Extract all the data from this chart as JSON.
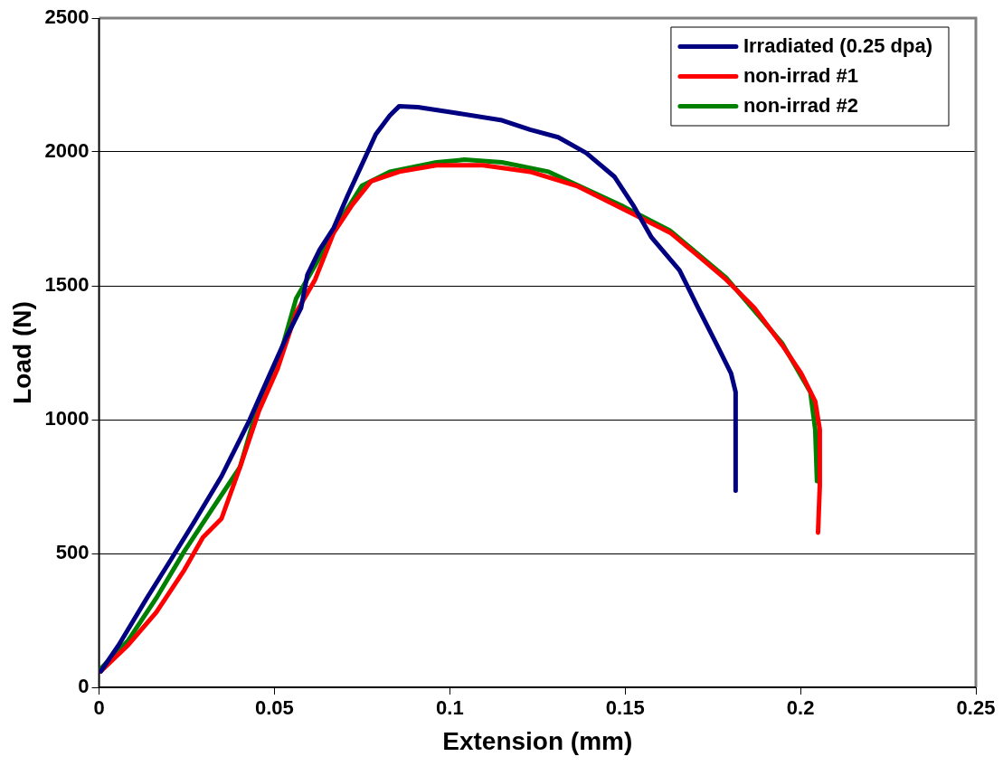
{
  "chart_data": {
    "type": "line",
    "xlabel": "Extension (mm)",
    "ylabel": "Load (N)",
    "xlim": [
      0,
      0.25
    ],
    "xticks": [
      0,
      0.05,
      0.1,
      0.15,
      0.2,
      0.25
    ],
    "ylim": [
      0,
      2500
    ],
    "yticks": [
      0,
      500,
      1000,
      1500,
      2000,
      2500
    ],
    "grid": "y",
    "legend": "top right",
    "marker": "none",
    "line_style": "solid",
    "series": [
      {
        "name": "Irradiated (0.25 dpa)",
        "color": "#000080",
        "x": [
          0.0005,
          0.0056,
          0.0136,
          0.0203,
          0.0269,
          0.0349,
          0.0429,
          0.0482,
          0.0536,
          0.0576,
          0.0594,
          0.0629,
          0.0669,
          0.0709,
          0.0746,
          0.0789,
          0.0829,
          0.0856,
          0.0909,
          0.1015,
          0.1149,
          0.1229,
          0.1309,
          0.1389,
          0.1469,
          0.1522,
          0.1575,
          0.1655,
          0.1708,
          0.1762,
          0.1802,
          0.1815,
          0.1815
        ],
        "values": [
          60,
          158,
          333,
          473,
          613,
          788,
          998,
          1155,
          1313,
          1418,
          1541,
          1635,
          1716,
          1838,
          1943,
          2066,
          2136,
          2171,
          2167,
          2146,
          2118,
          2083,
          2055,
          1996,
          1908,
          1803,
          1681,
          1558,
          1418,
          1278,
          1173,
          1103,
          735
        ]
      },
      {
        "name": "non-irrad #1",
        "color": "#ff0000",
        "x": [
          0.0005,
          0.0083,
          0.0163,
          0.0243,
          0.0296,
          0.0349,
          0.0402,
          0.0456,
          0.0509,
          0.0562,
          0.0616,
          0.0669,
          0.0722,
          0.0776,
          0.0856,
          0.0962,
          0.1095,
          0.1229,
          0.1362,
          0.1495,
          0.1629,
          0.1709,
          0.1788,
          0.1868,
          0.1948,
          0.2002,
          0.2042,
          0.2055,
          0.2055,
          0.205
        ],
        "values": [
          60,
          158,
          280,
          438,
          560,
          630,
          823,
          1033,
          1190,
          1400,
          1523,
          1698,
          1803,
          1891,
          1926,
          1950,
          1950,
          1926,
          1873,
          1786,
          1698,
          1611,
          1523,
          1418,
          1278,
          1173,
          1068,
          963,
          753,
          578
        ]
      },
      {
        "name": "non-irrad #2",
        "color": "#008000",
        "x": [
          0.0005,
          0.0083,
          0.0163,
          0.0243,
          0.0322,
          0.0402,
          0.0456,
          0.0509,
          0.0562,
          0.0616,
          0.0682,
          0.0749,
          0.0829,
          0.0962,
          0.1042,
          0.1149,
          0.1282,
          0.1495,
          0.1629,
          0.1788,
          0.1948,
          0.2028,
          0.2042,
          0.2047
        ],
        "values": [
          70,
          175,
          333,
          508,
          665,
          823,
          1068,
          1208,
          1453,
          1576,
          1733,
          1873,
          1926,
          1961,
          1971,
          1961,
          1926,
          1796,
          1705,
          1530,
          1285,
          1103,
          963,
          770
        ]
      }
    ]
  }
}
